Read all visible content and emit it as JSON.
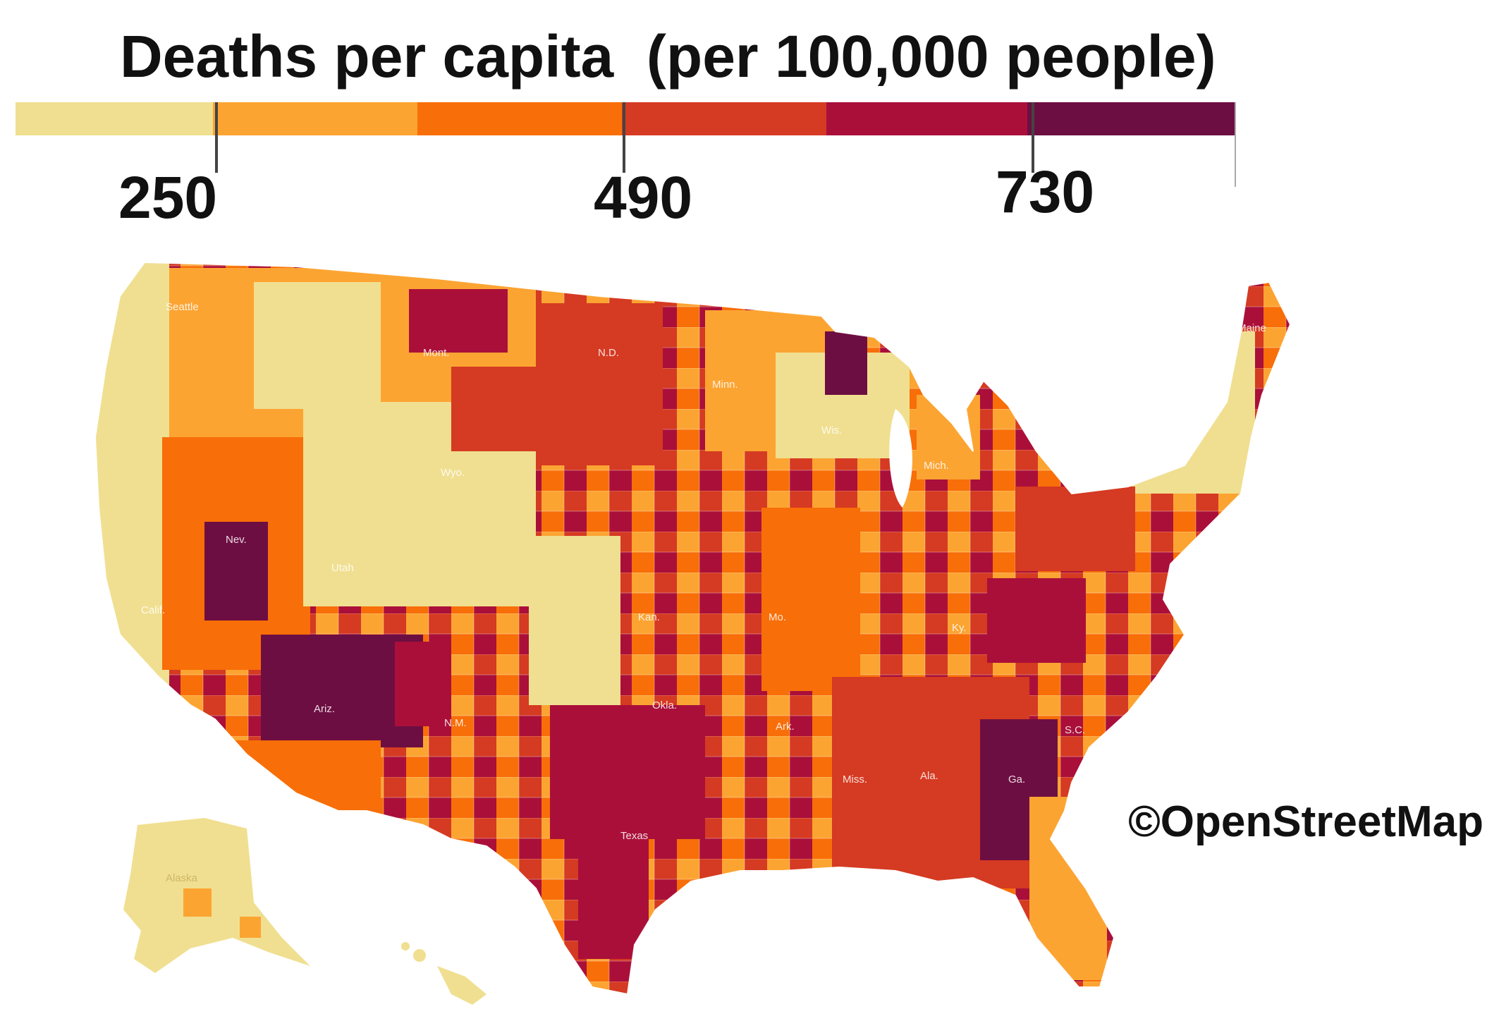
{
  "legend": {
    "title": "Deaths per capita  (per 100,000 people)",
    "ticks": [
      "250",
      "490",
      "730"
    ],
    "colors": [
      "#f0df90",
      "#fca432",
      "#f86e08",
      "#d53a22",
      "#aa0f3a",
      "#6d0e42"
    ]
  },
  "map_labels": {
    "wa": "Seattle",
    "mont": "Mont.",
    "nd": "N.D.",
    "minn": "Minn.",
    "wyo": "Wyo.",
    "nev": "Nev.",
    "utah": "Utah",
    "calif": "Calif.",
    "ariz": "Ariz.",
    "nm": "N.M.",
    "kan": "Kan.",
    "okla": "Okla.",
    "texas": "Texas",
    "mo": "Mo.",
    "ark": "Ark.",
    "miss": "Miss.",
    "ala": "Ala.",
    "ga": "Ga.",
    "sc": "S.C.",
    "ky": "Ky.",
    "mich": "Mich.",
    "wis": "Wis.",
    "maine": "Maine",
    "alaska": "Alaska"
  },
  "attribution": "©OpenStreetMap"
}
